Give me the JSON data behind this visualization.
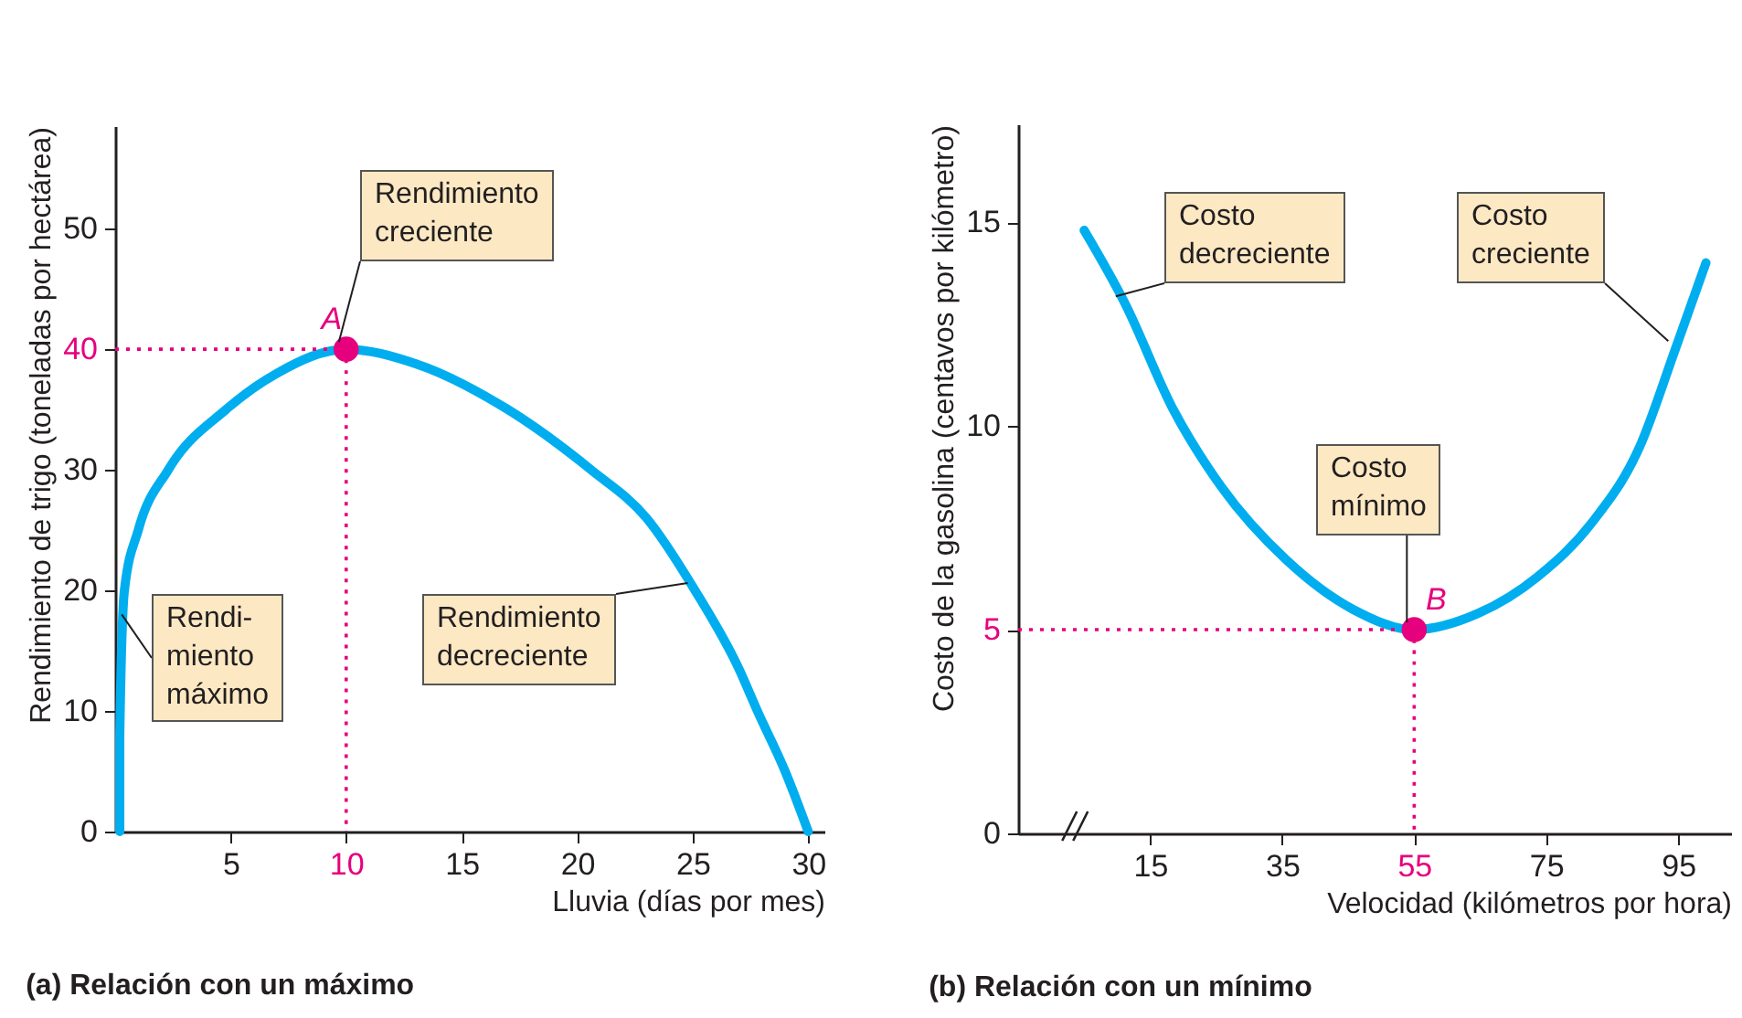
{
  "chart_data": [
    {
      "type": "line",
      "title": "(a) Relación con un máximo",
      "xlabel": "Lluvia (días por mes)",
      "ylabel": "Rendimiento de trigo (toneladas por hectárea)",
      "xlim": [
        0,
        30.7
      ],
      "ylim": [
        0,
        58.5
      ],
      "xticks": [
        5,
        10,
        15,
        20,
        25,
        30
      ],
      "yticks": [
        0,
        10,
        20,
        30,
        40,
        50
      ],
      "grid": false,
      "legend": false,
      "series": [
        {
          "type": "line",
          "color": "#00aeef",
          "x": [
            0.2,
            0.2,
            0.4,
            1,
            2.3,
            4.8,
            7,
            10,
            13,
            17,
            20.6,
            23,
            25.1,
            27,
            27.8,
            29,
            30
          ],
          "values": [
            0,
            8,
            20,
            25,
            30,
            35,
            38,
            40,
            38.8,
            35,
            30,
            26,
            20,
            13.5,
            10,
            5,
            0
          ]
        },
        {
          "type": "line",
          "line_style": "dotted",
          "color": "#e6007e",
          "x": [
            0,
            10,
            10
          ],
          "values": [
            40,
            40,
            0
          ]
        },
        {
          "type": "scatter",
          "name": "A",
          "color": "#e6007e",
          "x": [
            10
          ],
          "values": [
            40
          ]
        }
      ],
      "annotations": [
        {
          "text": "Rendimiento\ncreciente",
          "x": 10,
          "y": 40
        },
        {
          "text": "Rendi-\nmiento\nmáximo",
          "x": 0.6,
          "y": 17.4
        },
        {
          "text": "Rendimiento\ndecreciente",
          "x": 25.1,
          "y": 20
        }
      ]
    },
    {
      "type": "line",
      "title": "(b) Relación con un mínimo",
      "xlabel": "Velocidad (kilómetros por hora)",
      "ylabel": "Costo de la gasolina (centavos por kilómetro)",
      "xlim": [
        -5,
        103
      ],
      "ylim": [
        0,
        17.4
      ],
      "xticks": [
        15,
        35,
        55,
        75,
        95
      ],
      "yticks": [
        0,
        5,
        10,
        15
      ],
      "grid": false,
      "legend": false,
      "series": [
        {
          "type": "line",
          "color": "#00aeef",
          "x": [
            5,
            11.2,
            18.5,
            25.8,
            35.7,
            45.7,
            55,
            64.7,
            73.7,
            81.8,
            89.2,
            94.6,
            99.2
          ],
          "values": [
            14.8,
            13,
            10.4,
            8.5,
            6.7,
            5.5,
            5,
            5.4,
            6.3,
            7.6,
            9.5,
            11.9,
            14
          ]
        },
        {
          "type": "line",
          "line_style": "dotted",
          "color": "#e6007e",
          "x": [
            -5,
            55,
            55
          ],
          "values": [
            5,
            5,
            0
          ]
        },
        {
          "type": "scatter",
          "name": "B",
          "color": "#e6007e",
          "x": [
            55
          ],
          "values": [
            5
          ]
        }
      ],
      "annotations": [
        {
          "text": "Costo\ndecreciente",
          "x": 10.9,
          "y": 13
        },
        {
          "text": "Costo\ncreciente",
          "x": 94.6,
          "y": 11.9
        },
        {
          "text": "Costo\nmínimo",
          "x": 55,
          "y": 5
        }
      ]
    }
  ]
}
